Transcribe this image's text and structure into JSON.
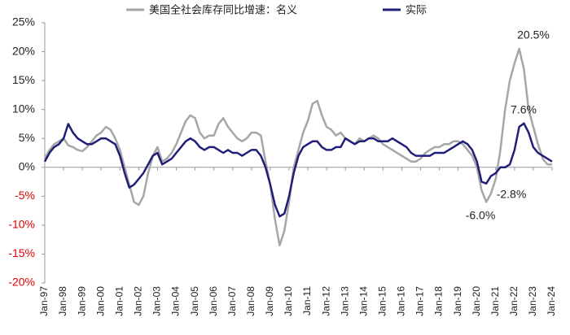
{
  "chart_data": {
    "type": "line",
    "categories": [
      "Jan-97",
      null,
      null,
      null,
      "Jan-98",
      null,
      null,
      null,
      "Jan-99",
      null,
      null,
      null,
      "Jan-00",
      null,
      null,
      null,
      "Jan-01",
      null,
      null,
      null,
      "Jan-02",
      null,
      null,
      null,
      "Jan-03",
      null,
      null,
      null,
      "Jan-04",
      null,
      null,
      null,
      "Jan-05",
      null,
      null,
      null,
      "Jan-06",
      null,
      null,
      null,
      "Jan-07",
      null,
      null,
      null,
      "Jan-08",
      null,
      null,
      null,
      "Jan-09",
      null,
      null,
      null,
      "Jan-10",
      null,
      null,
      null,
      "Jan-11",
      null,
      null,
      null,
      "Jan-12",
      null,
      null,
      null,
      "Jan-13",
      null,
      null,
      null,
      "Jan-14",
      null,
      null,
      null,
      "Jan-15",
      null,
      null,
      null,
      "Jan-16",
      null,
      null,
      null,
      "Jan-17",
      null,
      null,
      null,
      "Jan-18",
      null,
      null,
      null,
      "Jan-19",
      null,
      null,
      null,
      "Jan-20",
      null,
      null,
      null,
      "Jan-21",
      null,
      null,
      null,
      "Jan-22",
      null,
      null,
      null,
      "Jan-23",
      null,
      null,
      null,
      "Jan-24"
    ],
    "series": [
      {
        "name": "美国全社会库存同比增速：名义",
        "color": "#a6a6a6",
        "values": [
          1.5,
          3,
          4,
          4.5,
          5,
          3.8,
          3.5,
          3,
          2.8,
          3.5,
          4.5,
          5.5,
          6,
          7,
          6.5,
          5,
          3,
          0,
          -3,
          -6,
          -6.5,
          -5,
          -1,
          2,
          3.5,
          1,
          1.5,
          2.5,
          4,
          6,
          8,
          9,
          8.5,
          6,
          5,
          5.5,
          5.5,
          7.5,
          8.5,
          7,
          6,
          5,
          4.5,
          5,
          6,
          6,
          5.5,
          1,
          -3,
          -9,
          -13.5,
          -11,
          -6,
          0,
          3,
          6,
          8,
          11,
          11.5,
          9,
          7,
          6.5,
          5.5,
          6,
          5,
          4.5,
          4,
          5,
          4.5,
          5,
          5.5,
          5,
          4,
          3.5,
          3,
          2.5,
          2,
          1.5,
          1,
          1,
          1.5,
          2.5,
          3,
          3.5,
          3.5,
          4,
          4,
          4.5,
          4.5,
          4,
          3,
          2,
          0,
          -4,
          -6,
          -4.5,
          -2,
          3,
          10,
          15,
          18,
          20.5,
          17,
          10,
          7,
          4,
          1.5,
          0.5,
          0.5
        ]
      },
      {
        "name": "实际",
        "color": "#1f1f7a",
        "values": [
          1,
          2.5,
          3.5,
          4,
          5,
          7.5,
          6,
          5,
          4.5,
          4,
          4,
          4.5,
          5,
          5,
          4.5,
          4,
          2,
          -1,
          -3.5,
          -3,
          -2,
          -1,
          0.5,
          2,
          2.5,
          0.5,
          1,
          1.5,
          2.5,
          3.5,
          4.5,
          5,
          4.5,
          3.5,
          3,
          3.5,
          3.5,
          3,
          2.5,
          3,
          2.5,
          2.5,
          2,
          2.5,
          3,
          3,
          2,
          0,
          -3,
          -6.5,
          -8.5,
          -8,
          -5,
          -1,
          2,
          3.5,
          4,
          4.5,
          4.5,
          3.5,
          3,
          3,
          3.5,
          3.5,
          5,
          4.5,
          4,
          4.5,
          4.5,
          5,
          5,
          4.5,
          4.5,
          4.5,
          5,
          4.5,
          4,
          3.5,
          2.5,
          2,
          2,
          2,
          2,
          2.5,
          2.5,
          2.5,
          3,
          3.5,
          4,
          4.5,
          4,
          3,
          1,
          -2.5,
          -2.8,
          -1.5,
          -1,
          0,
          0,
          0.5,
          3,
          7,
          7.6,
          6,
          3.5,
          2.5,
          2,
          1.5,
          1
        ]
      }
    ],
    "ylim": [
      -20,
      25
    ],
    "yticks": [
      {
        "value": -20,
        "label": "-20%"
      },
      {
        "value": -15,
        "label": "-15%"
      },
      {
        "value": -10,
        "label": "-10%"
      },
      {
        "value": -5,
        "label": "-5%"
      },
      {
        "value": 0,
        "label": "0%"
      },
      {
        "value": 5,
        "label": "5%"
      },
      {
        "value": 10,
        "label": "10%"
      },
      {
        "value": 15,
        "label": "15%"
      },
      {
        "value": 20,
        "label": "20%"
      },
      {
        "value": 25,
        "label": "25%"
      }
    ],
    "annotations": [
      "20.5%",
      "7.6%",
      "-2.8%",
      "-6.0%"
    ],
    "legend": "top"
  }
}
